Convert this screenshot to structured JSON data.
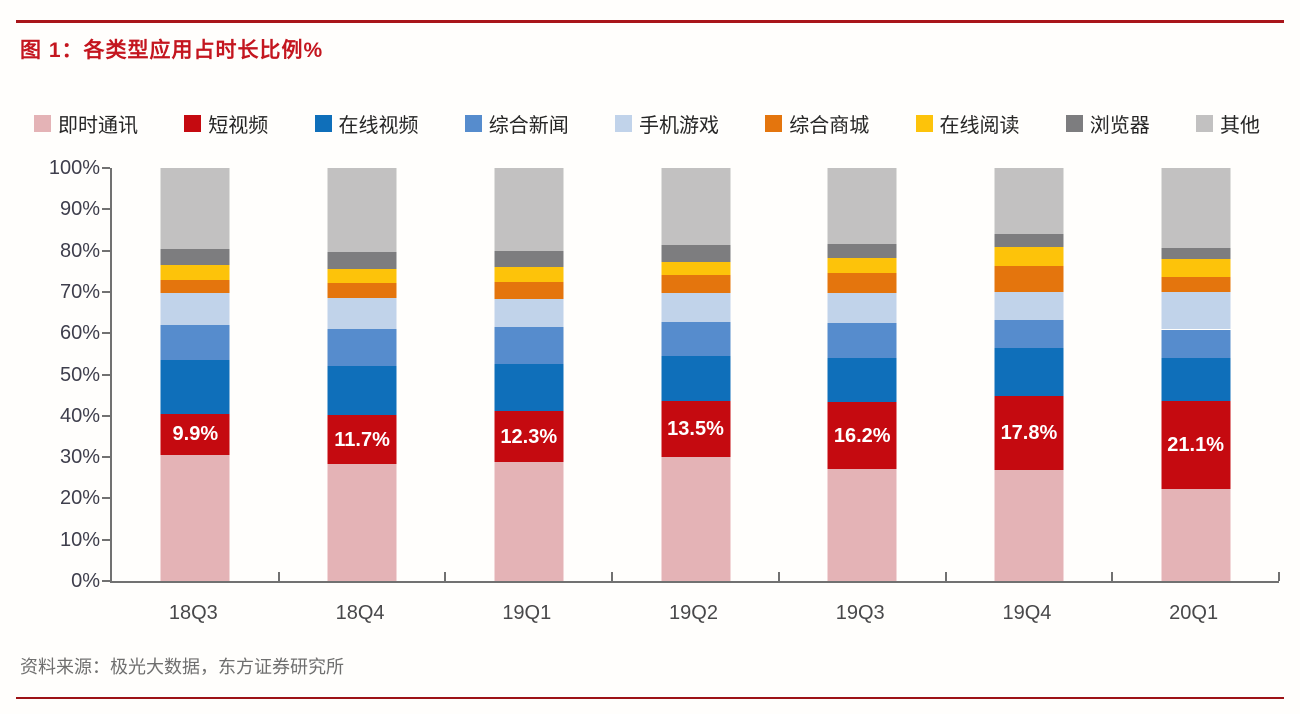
{
  "title": "图 1：各类型应用占时长比例%",
  "source": "资料来源：极光大数据，东方证券研究所",
  "accent": {
    "rule_red": "#a8151a",
    "title_red": "#c4161f",
    "axis_gray": "#717171"
  },
  "chart_data": {
    "type": "bar",
    "stacked": true,
    "title": "各类型应用占时长比例%",
    "xlabel": "",
    "ylabel": "",
    "ylim": [
      0,
      100
    ],
    "ytick_step": 10,
    "ytick_suffix": "%",
    "grid": false,
    "legend_position": "top",
    "categories": [
      "18Q3",
      "18Q4",
      "19Q1",
      "19Q2",
      "19Q3",
      "19Q4",
      "20Q1"
    ],
    "series": [
      {
        "name": "即时通讯",
        "color": "#e4b3b6",
        "values": [
          30.6,
          28.4,
          28.8,
          30.0,
          27.1,
          26.9,
          22.4
        ]
      },
      {
        "name": "短视频",
        "color": "#c50a10",
        "values": [
          9.9,
          11.7,
          12.3,
          13.5,
          16.2,
          17.8,
          21.1
        ]
      },
      {
        "name": "在线视频",
        "color": "#0f6fba",
        "values": [
          13.0,
          12.0,
          11.5,
          11.0,
          10.7,
          11.6,
          10.5
        ]
      },
      {
        "name": "综合新闻",
        "color": "#568ccd",
        "values": [
          8.5,
          8.8,
          8.8,
          8.2,
          8.5,
          7.0,
          6.9
        ]
      },
      {
        "name": "手机游戏",
        "color": "#c1d3ea",
        "values": [
          7.8,
          7.6,
          6.9,
          7.0,
          7.3,
          6.8,
          9.1
        ]
      },
      {
        "name": "综合商城",
        "color": "#e4750d",
        "values": [
          3.0,
          3.6,
          4.2,
          4.3,
          4.9,
          6.1,
          3.6
        ]
      },
      {
        "name": "在线阅读",
        "color": "#fdc30a",
        "values": [
          3.6,
          3.5,
          3.6,
          3.3,
          3.4,
          4.6,
          4.3
        ]
      },
      {
        "name": "浏览器",
        "color": "#7d7d7f",
        "values": [
          4.1,
          4.0,
          3.8,
          4.0,
          3.6,
          3.2,
          2.8
        ]
      },
      {
        "name": "其他",
        "color": "#c2c1c1",
        "values": [
          19.5,
          20.4,
          20.1,
          18.7,
          18.3,
          16.0,
          19.3
        ]
      }
    ],
    "label_series": "短视频",
    "data_labels": [
      "9.9%",
      "11.7%",
      "12.3%",
      "13.5%",
      "16.2%",
      "17.8%",
      "21.1%"
    ]
  }
}
